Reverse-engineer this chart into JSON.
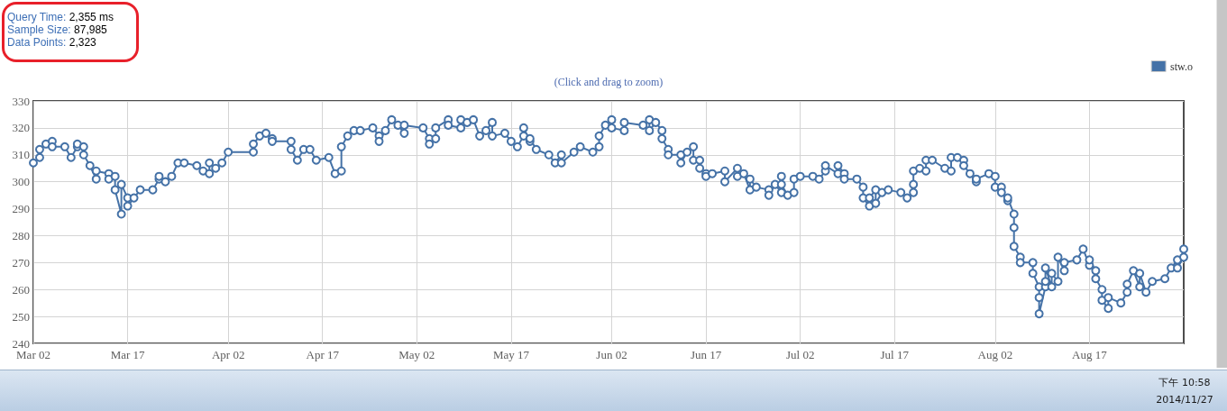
{
  "chart_data": {
    "type": "line",
    "subtitle": "(Click and drag to zoom)",
    "annotations": [
      "Query Time: 2,355 ms",
      "Sample Size: 87,985",
      "Data Points: 2,323",
      "下午 10:58",
      "2014/11/27"
    ],
    "x": [
      "--03-02",
      "--03-03",
      "--03-03",
      "--03-04",
      "--03-05",
      "--03-05",
      "--03-07",
      "--03-08",
      "--03-09",
      "--03-09",
      "--03-10",
      "--03-10",
      "--03-11",
      "--03-12",
      "--03-12",
      "--03-14",
      "--03-14",
      "--03-15",
      "--03-15",
      "--03-16",
      "--03-16",
      "--03-17",
      "--03-17",
      "--03-18",
      "--03-19",
      "--03-21",
      "--03-22",
      "--03-22",
      "--03-23",
      "--03-24",
      "--03-25",
      "--03-26",
      "--03-28",
      "--03-29",
      "--03-30",
      "--03-30",
      "--03-31",
      "--04-01",
      "--04-02",
      "--04-06",
      "--04-06",
      "--04-07",
      "--04-08",
      "--04-09",
      "--04-09",
      "--04-12",
      "--04-12",
      "--04-13",
      "--04-14",
      "--04-15",
      "--04-16",
      "--04-18",
      "--04-19",
      "--04-20",
      "--04-20",
      "--04-21",
      "--04-22",
      "--04-23",
      "--04-25",
      "--04-26",
      "--04-26",
      "--04-27",
      "--04-28",
      "--04-29",
      "--04-30",
      "--04-30",
      "--05-03",
      "--05-04",
      "--05-04",
      "--05-05",
      "--05-05",
      "--05-07",
      "--05-07",
      "--05-09",
      "--05-09",
      "--05-10",
      "--05-11",
      "--05-12",
      "--05-13",
      "--05-14",
      "--05-14",
      "--05-16",
      "--05-17",
      "--05-18",
      "--05-19",
      "--05-19",
      "--05-20",
      "--05-20",
      "--05-21",
      "--05-23",
      "--05-24",
      "--05-25",
      "--05-25",
      "--05-27",
      "--05-28",
      "--05-30",
      "--05-31",
      "--05-31",
      "--06-01",
      "--06-02",
      "--06-02",
      "--06-04",
      "--06-04",
      "--06-07",
      "--06-08",
      "--06-08",
      "--06-09",
      "--06-10",
      "--06-10",
      "--06-11",
      "--06-11",
      "--06-13",
      "--06-13",
      "--06-14",
      "--06-15",
      "--06-15",
      "--06-16",
      "--06-16",
      "--06-17",
      "--06-17",
      "--06-18",
      "--06-20",
      "--06-20",
      "--06-22",
      "--06-22",
      "--06-23",
      "--06-24",
      "--06-24",
      "--06-25",
      "--06-27",
      "--06-27",
      "--06-28",
      "--06-29",
      "--06-29",
      "--06-29",
      "--06-30",
      "--07-01",
      "--07-01",
      "--07-02",
      "--07-04",
      "--07-05",
      "--07-06",
      "--07-06",
      "--07-08",
      "--07-08",
      "--07-09",
      "--07-09",
      "--07-11",
      "--07-12",
      "--07-12",
      "--07-13",
      "--07-13",
      "--07-14",
      "--07-14",
      "--07-15",
      "--07-16",
      "--07-18",
      "--07-19",
      "--07-20",
      "--07-20",
      "--07-20",
      "--07-21",
      "--07-22",
      "--07-22",
      "--07-23",
      "--07-25",
      "--07-26",
      "--07-26",
      "--07-27",
      "--07-28",
      "--07-28",
      "--07-29",
      "--07-30",
      "--07-30",
      "--08-01",
      "--08-02",
      "--08-02",
      "--08-03",
      "--08-03",
      "--08-04",
      "--08-04",
      "--08-05",
      "--08-05",
      "--08-05",
      "--08-06",
      "--08-06",
      "--08-08",
      "--08-08",
      "--08-09",
      "--08-09",
      "--08-09",
      "--08-10",
      "--08-10",
      "--08-10",
      "--08-11",
      "--08-11",
      "--08-12",
      "--08-12",
      "--08-13",
      "--08-13",
      "--08-15",
      "--08-16",
      "--08-17",
      "--08-17",
      "--08-18",
      "--08-18",
      "--08-19",
      "--08-19",
      "--08-20",
      "--08-20",
      "--08-22",
      "--08-23",
      "--08-23",
      "--08-24",
      "--08-25",
      "--08-25",
      "--08-26",
      "--08-27",
      "--08-29",
      "--08-30",
      "--08-31",
      "--08-31",
      "--09-01",
      "--09-01"
    ],
    "series": [
      {
        "name": "stw.o",
        "color": "#4572a7",
        "values": [
          307,
          309,
          312,
          314,
          315,
          313,
          313,
          309,
          313,
          314,
          313,
          310,
          306,
          301,
          304,
          303,
          301,
          302,
          297,
          288,
          299,
          294,
          291,
          294,
          297,
          297,
          301,
          302,
          300,
          302,
          307,
          307,
          306,
          304,
          303,
          307,
          305,
          307,
          311,
          311,
          314,
          317,
          318,
          316,
          315,
          315,
          312,
          308,
          312,
          312,
          308,
          309,
          303,
          304,
          313,
          317,
          319,
          319,
          320,
          317,
          315,
          319,
          323,
          321,
          318,
          321,
          320,
          316,
          314,
          316,
          320,
          323,
          321,
          320,
          323,
          322,
          323,
          317,
          319,
          322,
          317,
          318,
          315,
          313,
          317,
          320,
          315,
          316,
          312,
          310,
          307,
          310,
          307,
          311,
          313,
          311,
          313,
          317,
          321,
          323,
          320,
          319,
          322,
          321,
          323,
          319,
          322,
          319,
          316,
          312,
          310,
          310,
          307,
          311,
          313,
          308,
          308,
          305,
          303,
          302,
          303,
          304,
          300,
          305,
          302,
          303,
          297,
          301,
          298,
          297,
          295,
          299,
          296,
          302,
          299,
          295,
          296,
          301,
          302,
          302,
          301,
          304,
          306,
          303,
          306,
          303,
          301,
          301,
          298,
          294,
          291,
          294,
          297,
          292,
          296,
          297,
          296,
          294,
          296,
          299,
          304,
          305,
          304,
          308,
          308,
          305,
          304,
          309,
          309,
          308,
          306,
          303,
          300,
          301,
          303,
          302,
          298,
          298,
          296,
          293,
          294,
          288,
          283,
          276,
          272,
          270,
          270,
          266,
          261,
          257,
          251,
          261,
          263,
          268,
          261,
          266,
          263,
          272,
          267,
          270,
          271,
          275,
          269,
          271,
          267,
          264,
          260,
          256,
          253,
          257,
          255,
          259,
          262,
          267,
          261,
          266,
          259,
          263,
          264,
          268,
          271,
          268,
          272,
          275
        ]
      }
    ],
    "xlim": [
      "--03-02",
      "--09-01"
    ],
    "xticks": [
      {
        "value": "--03-02",
        "label": "Mar 02"
      },
      {
        "value": "--03-17",
        "label": "Mar 17"
      },
      {
        "value": "--04-02",
        "label": "Apr 02"
      },
      {
        "value": "--04-17",
        "label": "Apr 17"
      },
      {
        "value": "--05-02",
        "label": "May 02"
      },
      {
        "value": "--05-17",
        "label": "May 17"
      },
      {
        "value": "--06-02",
        "label": "Jun 02"
      },
      {
        "value": "--06-17",
        "label": "Jun 17"
      },
      {
        "value": "--07-02",
        "label": "Jul 02"
      },
      {
        "value": "--07-17",
        "label": "Jul 17"
      },
      {
        "value": "--08-02",
        "label": "Aug 02"
      },
      {
        "value": "--08-17",
        "label": "Aug 17"
      }
    ],
    "ylim": [
      240,
      330
    ],
    "yticks": [
      240,
      250,
      260,
      270,
      280,
      290,
      300,
      310,
      320,
      330
    ],
    "grid": true,
    "legend": "top right",
    "marker": "circle",
    "line_style": "solid"
  }
}
